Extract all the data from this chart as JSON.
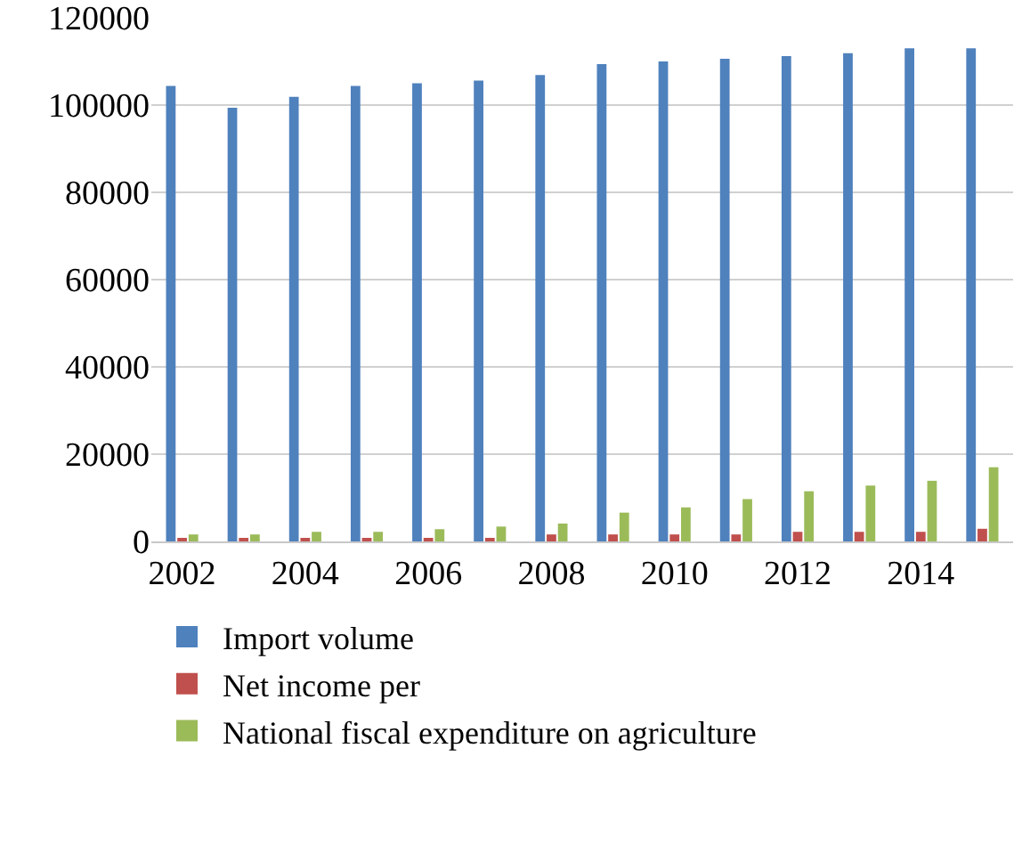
{
  "chart_data": {
    "type": "bar",
    "categories": [
      "2002",
      null,
      "2004",
      null,
      "2006",
      null,
      "2008",
      null,
      "2010",
      null,
      "2012",
      null,
      "2014",
      null
    ],
    "series": [
      {
        "name": "Import volume",
        "color": "#4f81bd",
        "values": [
          104400,
          99400,
          101900,
          104400,
          105000,
          105600,
          106900,
          109400,
          110000,
          110600,
          111200,
          111900,
          113000,
          113000
        ]
      },
      {
        "name": "Net income per",
        "color": "#c0504d",
        "values": [
          800,
          800,
          800,
          800,
          800,
          800,
          1600,
          1600,
          1600,
          1600,
          2200,
          2200,
          2200,
          2900
        ]
      },
      {
        "name": "National fiscal expenditure on agriculture",
        "color": "#9bbb59",
        "values": [
          1600,
          1600,
          2200,
          2200,
          2800,
          3400,
          4100,
          6600,
          7800,
          9700,
          11500,
          12800,
          13900,
          17000
        ]
      }
    ],
    "ylim": [
      0,
      120000
    ],
    "yticks": [
      0,
      20000,
      40000,
      60000,
      80000,
      100000,
      120000
    ],
    "grid": "y",
    "legend": "bottom"
  }
}
